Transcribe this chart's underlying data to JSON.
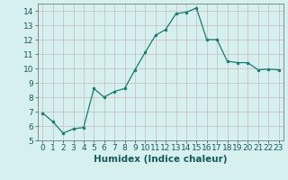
{
  "x": [
    0,
    1,
    2,
    3,
    4,
    5,
    6,
    7,
    8,
    9,
    10,
    11,
    12,
    13,
    14,
    15,
    16,
    17,
    18,
    19,
    20,
    21,
    22,
    23
  ],
  "y": [
    6.9,
    6.3,
    5.5,
    5.8,
    5.9,
    8.6,
    8.0,
    8.4,
    8.6,
    9.9,
    11.1,
    12.3,
    12.7,
    13.8,
    13.9,
    14.2,
    12.0,
    12.0,
    10.5,
    10.4,
    10.4,
    9.9,
    9.95,
    9.9
  ],
  "xlim": [
    -0.5,
    23.5
  ],
  "ylim": [
    5,
    14.5
  ],
  "yticks": [
    5,
    6,
    7,
    8,
    9,
    10,
    11,
    12,
    13,
    14
  ],
  "xticks": [
    0,
    1,
    2,
    3,
    4,
    5,
    6,
    7,
    8,
    9,
    10,
    11,
    12,
    13,
    14,
    15,
    16,
    17,
    18,
    19,
    20,
    21,
    22,
    23
  ],
  "xlabel": "Humidex (Indice chaleur)",
  "line_color": "#1a7a6e",
  "marker": "o",
  "marker_size": 2.0,
  "bg_color": "#d6f0f0",
  "grid_color_major": "#c8b8b8",
  "xlabel_fontsize": 7.5,
  "tick_fontsize": 6.5
}
